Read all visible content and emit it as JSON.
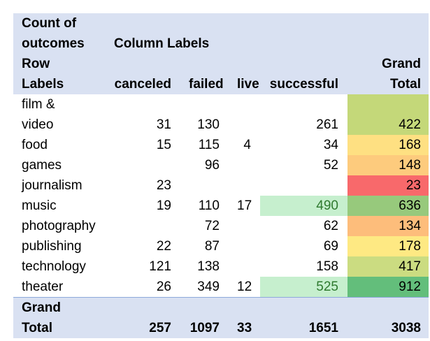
{
  "header": {
    "line1": "Count of",
    "line2": "outcomes",
    "column_labels": "Column Labels",
    "row_labels_1": "Row",
    "row_labels_2": "Labels",
    "columns": [
      "canceled",
      "failed",
      "live",
      "successful"
    ],
    "grand_total_1": "Grand",
    "grand_total_2": "Total"
  },
  "rows": [
    {
      "label_1": "film &",
      "label_2": "video",
      "canceled": "31",
      "failed": "130",
      "live": "",
      "successful": "261",
      "total": "422",
      "total_color": "#c4d879",
      "successful_color": ""
    },
    {
      "label_1": "",
      "label_2": "food",
      "canceled": "15",
      "failed": "115",
      "live": "4",
      "successful": "34",
      "total": "168",
      "total_color": "#fee082",
      "successful_color": ""
    },
    {
      "label_1": "",
      "label_2": "games",
      "canceled": "",
      "failed": "96",
      "live": "",
      "successful": "52",
      "total": "148",
      "total_color": "#fdcb7d",
      "successful_color": ""
    },
    {
      "label_1": "",
      "label_2": "journalism",
      "canceled": "23",
      "failed": "",
      "live": "",
      "successful": "",
      "total": "23",
      "total_color": "#f8696b",
      "successful_color": ""
    },
    {
      "label_1": "",
      "label_2": "music",
      "canceled": "19",
      "failed": "110",
      "live": "17",
      "successful": "490",
      "total": "636",
      "total_color": "#97c97c",
      "successful_color": "#c6efce"
    },
    {
      "label_1": "",
      "label_2": "photography",
      "canceled": "",
      "failed": "72",
      "live": "",
      "successful": "62",
      "total": "134",
      "total_color": "#fdbd7b",
      "successful_color": ""
    },
    {
      "label_1": "",
      "label_2": "publishing",
      "canceled": "22",
      "failed": "87",
      "live": "",
      "successful": "69",
      "total": "178",
      "total_color": "#fee983",
      "successful_color": ""
    },
    {
      "label_1": "",
      "label_2": "technology",
      "canceled": "121",
      "failed": "138",
      "live": "",
      "successful": "158",
      "total": "417",
      "total_color": "#cbdc81",
      "successful_color": ""
    },
    {
      "label_1": "",
      "label_2": "theater",
      "canceled": "26",
      "failed": "349",
      "live": "12",
      "successful": "525",
      "total": "912",
      "total_color": "#63be7b",
      "successful_color": "#c6efce"
    }
  ],
  "grand_total": {
    "label_1": "Grand",
    "label_2": "Total",
    "canceled": "257",
    "failed": "1097",
    "live": "33",
    "successful": "1651",
    "total": "3038"
  },
  "colors": {
    "header_bg": "#d9e1f2",
    "success_text": "#2f7a2f"
  }
}
